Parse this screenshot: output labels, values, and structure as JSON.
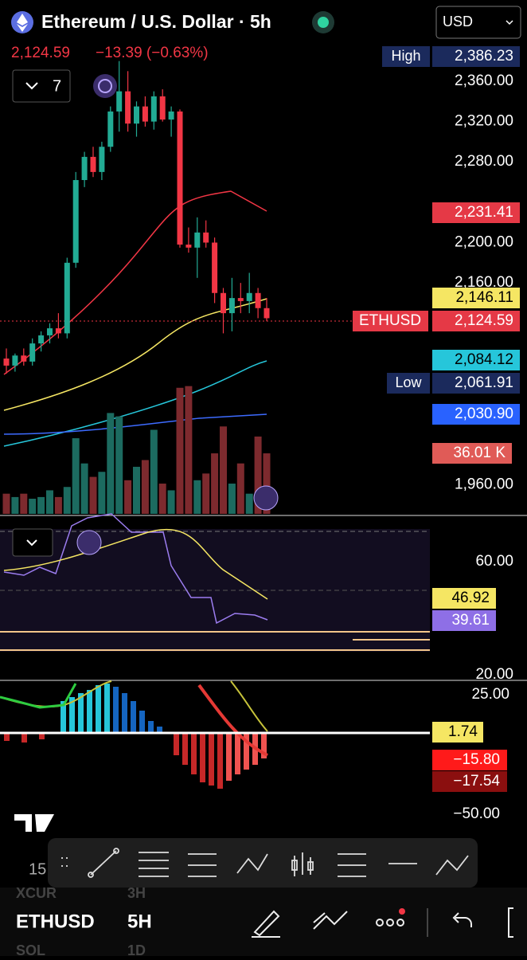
{
  "header": {
    "title": "Ethereum / U.S. Dollar · 5h",
    "price": "2,124.59",
    "change": "−13.39 (−0.63%)",
    "currency": "USD",
    "indicator_count": "7"
  },
  "price_axis": {
    "ylim": [
      1931,
      2405
    ],
    "ticks": [
      {
        "value": 2360,
        "label": "2,360.00"
      },
      {
        "value": 2320,
        "label": "2,320.00"
      },
      {
        "value": 2280,
        "label": "2,280.00"
      },
      {
        "value": 2200,
        "label": "2,200.00"
      },
      {
        "value": 2160,
        "label": "2,160.00"
      },
      {
        "value": 1960,
        "label": "1,960.00"
      }
    ]
  },
  "badges": {
    "high_label": "High",
    "high": "2,386.23",
    "ma_red": "2,231.41",
    "ma_yellow": "2,146.11",
    "symbol": "ETHUSD",
    "last": "2,124.59",
    "ma_cyan": "2,084.12",
    "low_label": "Low",
    "low": "2,061.91",
    "ma_blue": "2,030.90",
    "volume": "36.01 K"
  },
  "candles": [
    [
      2085,
      2095,
      2070,
      2078
    ],
    [
      2078,
      2090,
      2072,
      2088
    ],
    [
      2088,
      2095,
      2078,
      2082
    ],
    [
      2082,
      2105,
      2078,
      2100
    ],
    [
      2100,
      2112,
      2092,
      2108
    ],
    [
      2108,
      2120,
      2100,
      2115
    ],
    [
      2115,
      2130,
      2105,
      2110
    ],
    [
      2110,
      2185,
      2105,
      2180
    ],
    [
      2180,
      2270,
      2175,
      2262
    ],
    [
      2262,
      2290,
      2255,
      2285
    ],
    [
      2285,
      2295,
      2265,
      2270
    ],
    [
      2270,
      2300,
      2262,
      2295
    ],
    [
      2295,
      2335,
      2290,
      2330
    ],
    [
      2330,
      2380,
      2310,
      2350
    ],
    [
      2350,
      2370,
      2310,
      2318
    ],
    [
      2318,
      2340,
      2305,
      2335
    ],
    [
      2335,
      2345,
      2315,
      2320
    ],
    [
      2320,
      2350,
      2312,
      2345
    ],
    [
      2345,
      2352,
      2320,
      2322
    ],
    [
      2322,
      2335,
      2305,
      2330
    ],
    [
      2330,
      2332,
      2195,
      2198
    ],
    [
      2198,
      2215,
      2190,
      2195
    ],
    [
      2195,
      2225,
      2165,
      2210
    ],
    [
      2210,
      2222,
      2195,
      2200
    ],
    [
      2200,
      2205,
      2140,
      2150
    ],
    [
      2150,
      2155,
      2110,
      2130
    ],
    [
      2130,
      2165,
      2112,
      2145
    ],
    [
      2145,
      2160,
      2130,
      2142
    ],
    [
      2142,
      2170,
      2130,
      2150
    ],
    [
      2150,
      2155,
      2125,
      2135
    ],
    [
      2135,
      2145,
      2122,
      2125
    ]
  ],
  "volumes": [
    12,
    10,
    12,
    9,
    10,
    14,
    10,
    16,
    45,
    30,
    22,
    25,
    60,
    58,
    20,
    28,
    32,
    50,
    18,
    14,
    75,
    76,
    20,
    24,
    36,
    52,
    18,
    30,
    12,
    46,
    36
  ],
  "rsi": {
    "tick_top": "60.00",
    "ma": "46.92",
    "rsi": "39.61",
    "tick_bottom": "20.00"
  },
  "macd": {
    "tick_top": "25.00",
    "histogram": "1.74",
    "macd": "−15.80",
    "signal": "−17.54",
    "tick_bottom": "−50.00"
  },
  "toolbar": {
    "left": "15"
  },
  "bottom_bar": {
    "symbol": "ETHUSD",
    "interval": "5H",
    "prev_symbol": "XCUR",
    "prev_interval": "3H",
    "next_symbol": "SOL",
    "next_interval": "1D"
  }
}
